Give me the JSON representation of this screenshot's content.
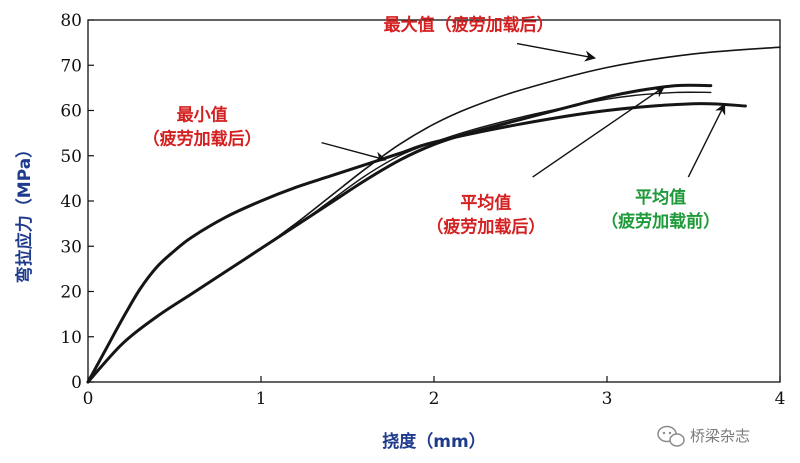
{
  "chart_data": {
    "type": "line",
    "title": "",
    "xlabel": "挠度（mm）",
    "ylabel": "弯拉应力（MPa）",
    "xlim": [
      0,
      4
    ],
    "ylim": [
      0,
      80
    ],
    "x_ticks": [
      "0",
      "1",
      "2",
      "3",
      "4"
    ],
    "y_ticks": [
      "0",
      "10",
      "20",
      "30",
      "40",
      "50",
      "60",
      "70",
      "80"
    ],
    "grid": false,
    "series": [
      {
        "name": "最大值（疲劳加载后）",
        "color": "#d42020",
        "stroke": 1.6,
        "x": [
          0,
          0.2,
          0.4,
          0.6,
          0.8,
          1.0,
          1.2,
          1.4,
          1.6,
          1.8,
          2.0,
          2.2,
          2.5,
          3.0,
          3.5,
          4.0
        ],
        "y": [
          0,
          8.5,
          14.5,
          19.5,
          24.5,
          29.5,
          35,
          41,
          47,
          52.5,
          57,
          60.5,
          64.5,
          69.5,
          72.5,
          74
        ]
      },
      {
        "name": "平均值（疲劳加载后）",
        "color": "#d42020",
        "stroke": 1.4,
        "x": [
          0,
          0.2,
          0.4,
          0.6,
          0.8,
          1.0,
          1.2,
          1.4,
          1.6,
          1.8,
          2.0,
          2.2,
          2.5,
          2.8,
          3.0,
          3.2,
          3.4,
          3.6
        ],
        "y": [
          0,
          8.5,
          14.5,
          19.5,
          24.5,
          29.5,
          34.5,
          40,
          45.5,
          50,
          53,
          55.5,
          58.5,
          61,
          62.5,
          63.5,
          64,
          64
        ]
      },
      {
        "name": "平均值（疲劳加载前）",
        "color": "#1f9a3a",
        "stroke": 3,
        "x": [
          0,
          0.2,
          0.4,
          0.6,
          0.8,
          1.0,
          1.2,
          1.4,
          1.6,
          1.8,
          2.0,
          2.2,
          2.5,
          2.8,
          3.0,
          3.2,
          3.4,
          3.6
        ],
        "y": [
          0,
          8.5,
          14.5,
          19.5,
          24.5,
          29.5,
          34.5,
          39.5,
          44.5,
          49,
          52.5,
          55,
          58,
          61,
          63,
          64.5,
          65.5,
          65.5
        ]
      },
      {
        "name": "最小值（疲劳加载后）",
        "color": "#d42020",
        "stroke": 3,
        "x": [
          0,
          0.1,
          0.2,
          0.3,
          0.4,
          0.5,
          0.6,
          0.8,
          1.0,
          1.2,
          1.4,
          1.6,
          1.8,
          2.0,
          2.5,
          3.0,
          3.5,
          3.8
        ],
        "y": [
          0,
          7,
          14,
          20.5,
          25.5,
          29,
          32,
          36.5,
          40,
          43,
          45.5,
          48,
          50.5,
          53,
          57,
          60,
          61.5,
          61
        ]
      }
    ],
    "annotations": [
      {
        "id": "max",
        "lines": [
          "最大值（疲劳加载后）"
        ],
        "color": "#d42020",
        "x_center": 2.2,
        "y": 77.7,
        "arrow": {
          "from": [
            2.48,
            74.8
          ],
          "to": [
            2.93,
            71.6
          ]
        }
      },
      {
        "id": "min",
        "lines": [
          "最小值",
          "（疲劳加载后）"
        ],
        "color": "#d42020",
        "x_center": 0.66,
        "y": 57.8,
        "arrow": {
          "from": [
            1.35,
            52.9
          ],
          "to": [
            1.72,
            49.1
          ]
        }
      },
      {
        "id": "avg-after",
        "lines": [
          "平均值",
          "（疲劳加载后）"
        ],
        "color": "#d42020",
        "x_center": 2.3,
        "y": 38.3,
        "arrow": {
          "from": [
            2.57,
            45.3
          ],
          "to": [
            3.33,
            65.2
          ]
        }
      },
      {
        "id": "avg-before",
        "lines": [
          "平均值",
          "（疲劳加载前）"
        ],
        "color": "#1f9a3a",
        "x_center": 3.31,
        "y": 39.6,
        "arrow": {
          "from": [
            3.47,
            45.3
          ],
          "to": [
            3.68,
            61.4
          ]
        }
      }
    ]
  },
  "watermark": {
    "text": "桥梁杂志",
    "icon": "wechat-icon"
  }
}
